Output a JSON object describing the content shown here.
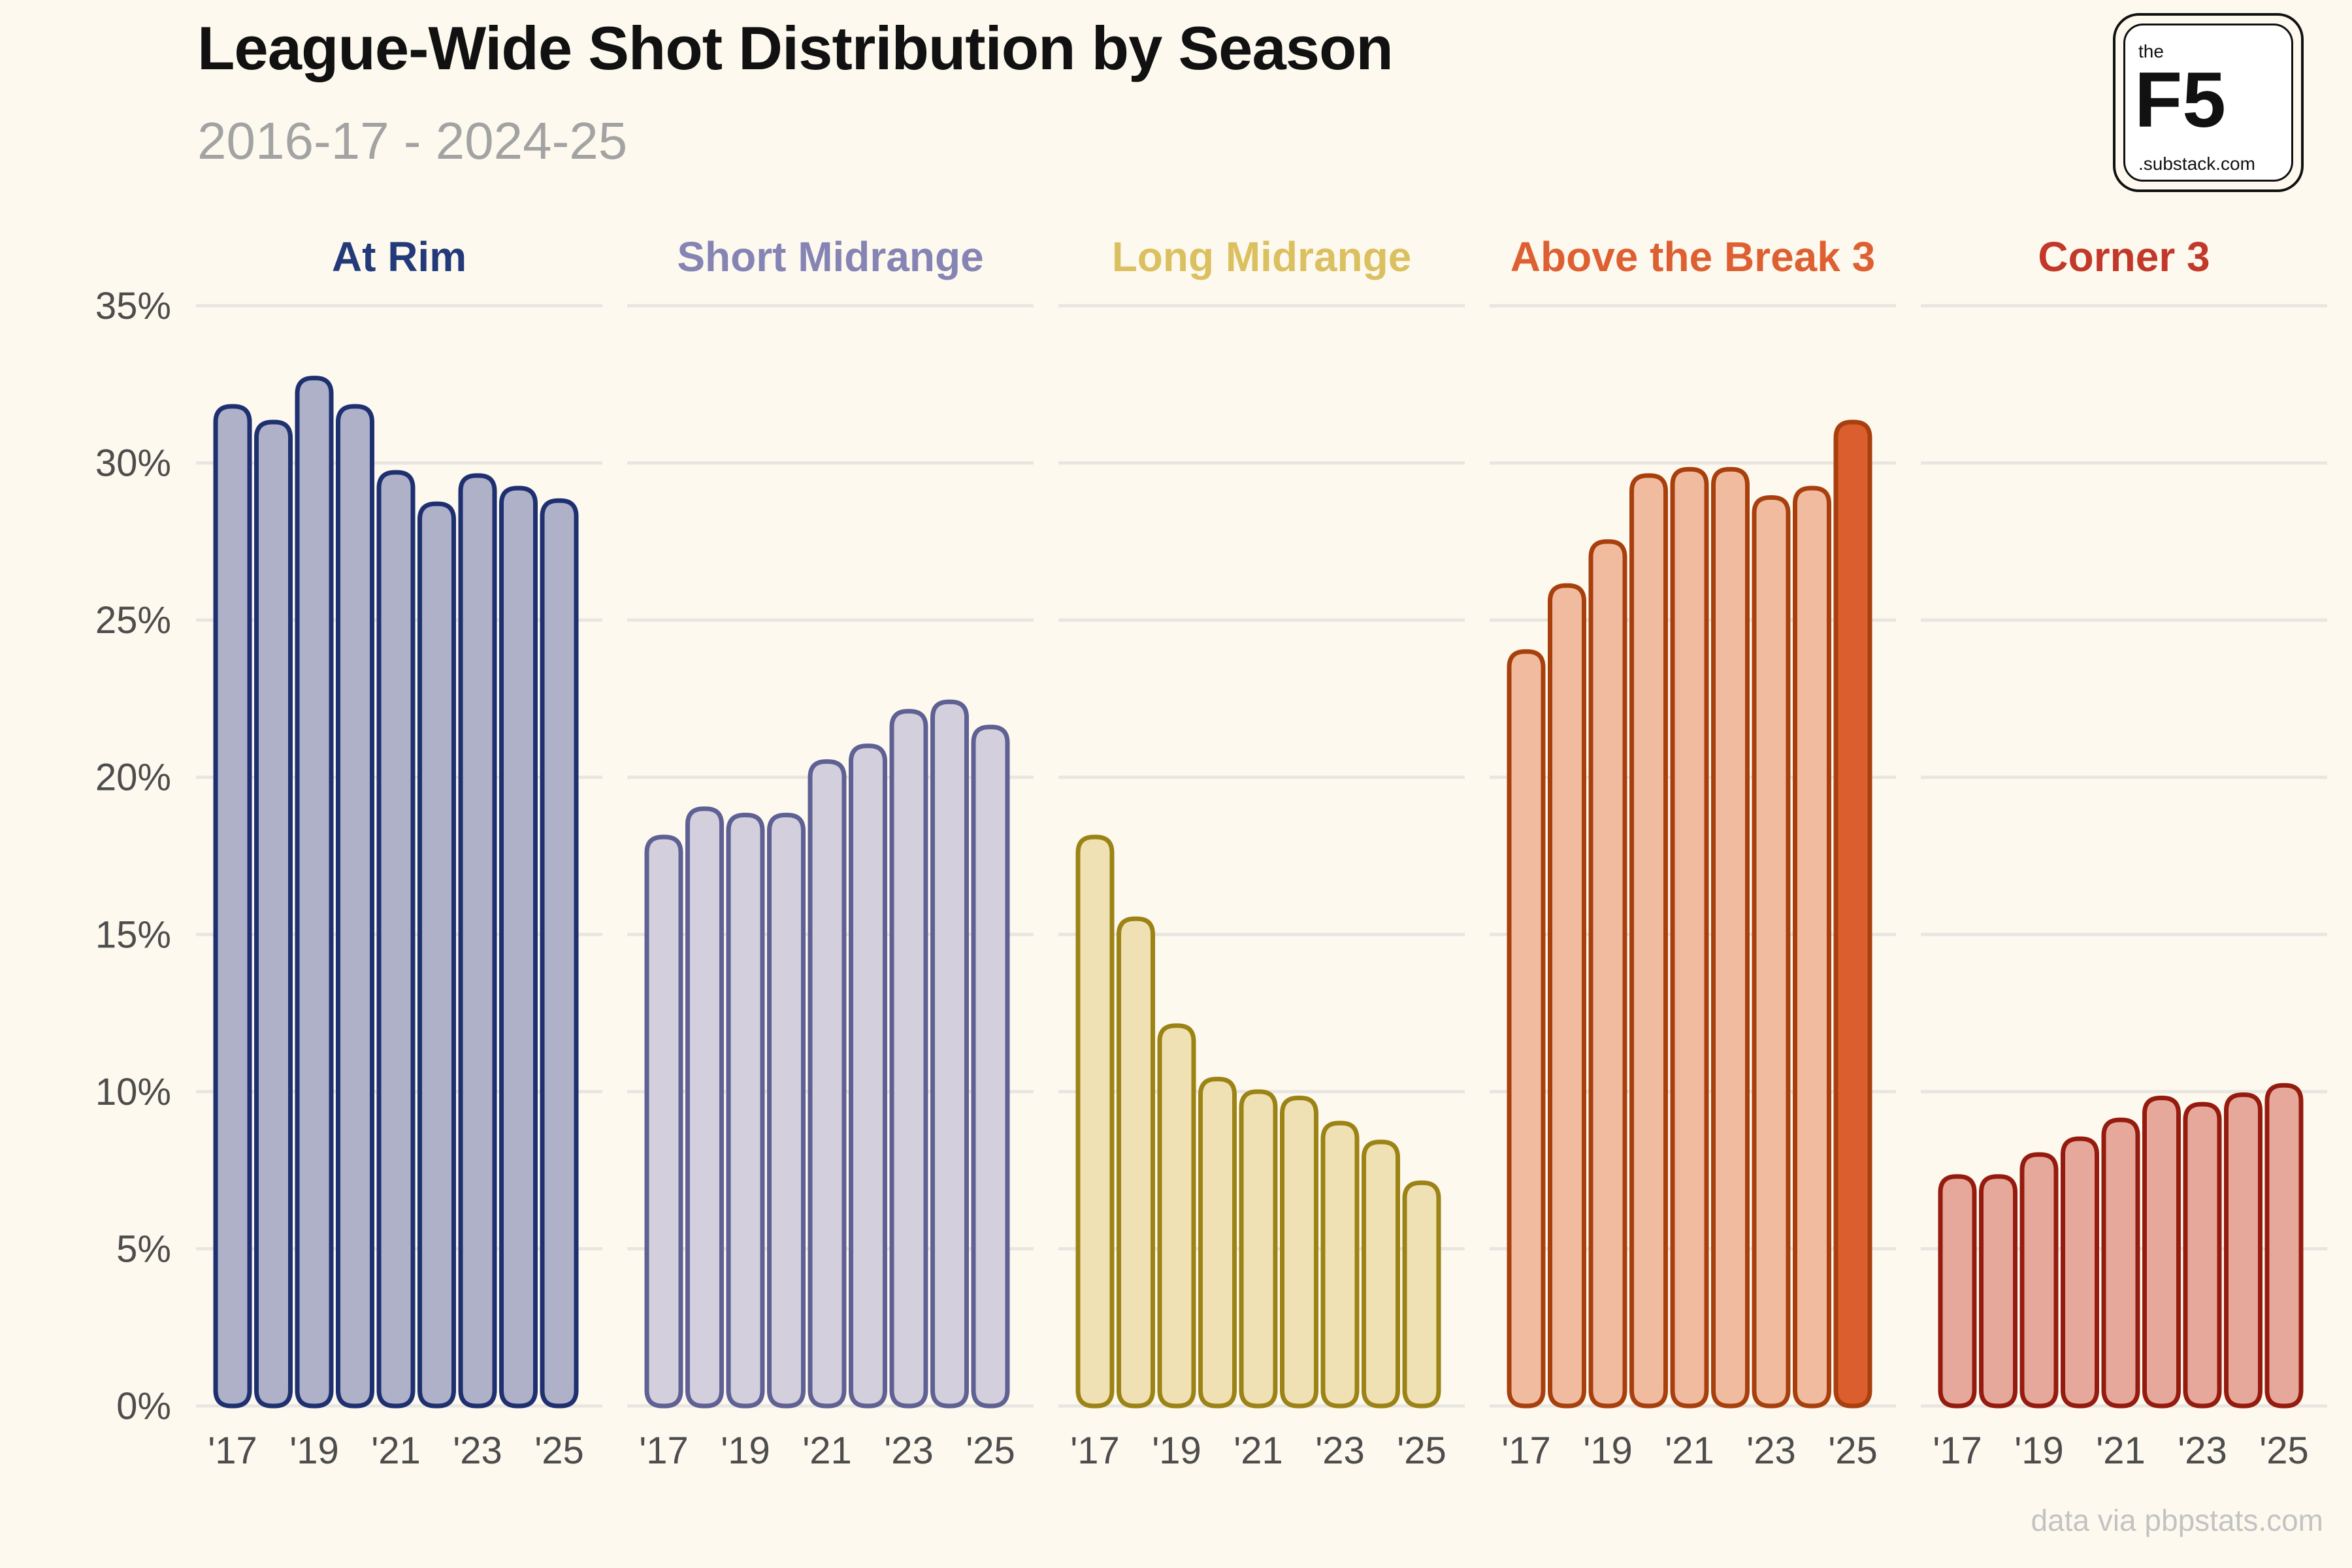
{
  "header": {
    "title": "League-Wide Shot Distribution by Season",
    "subtitle": "2016-17 - 2024-25"
  },
  "logo": {
    "the": "the",
    "main": "F5",
    "sub": ".substack.com"
  },
  "source": "data via pbpstats.com",
  "colors": {
    "background": "#fdf9ee",
    "grid": "#e9e6e2",
    "axis_text": "#4d4d4d"
  },
  "chart_data": {
    "type": "bar",
    "title": "League-Wide Shot Distribution by Season",
    "subtitle": "2016-17 - 2024-25",
    "categories": [
      "'17",
      "'18",
      "'19",
      "'20",
      "'21",
      "'22",
      "'23",
      "'24",
      "'25"
    ],
    "x_tick_labels": [
      "'17",
      "'19",
      "'21",
      "'23",
      "'25"
    ],
    "ylim": [
      0,
      35
    ],
    "y_ticks": [
      "0%",
      "5%",
      "10%",
      "15%",
      "20%",
      "25%",
      "30%",
      "35%"
    ],
    "grid": true,
    "series": [
      {
        "name": "At Rim",
        "values": [
          31.8,
          31.3,
          32.7,
          31.8,
          29.7,
          28.7,
          29.6,
          29.2,
          28.8
        ],
        "title_color": "#23397a",
        "stroke": "#1f3070",
        "fill": "#aeb1c8",
        "highlight_fill": "#aeb1c8"
      },
      {
        "name": "Short Midrange",
        "values": [
          18.1,
          19.0,
          18.8,
          18.8,
          20.5,
          21.0,
          22.1,
          22.4,
          21.6
        ],
        "title_color": "#8584b4",
        "stroke": "#5f6093",
        "fill": "#d3cfdd",
        "highlight_fill": "#d3cfdd"
      },
      {
        "name": "Long Midrange",
        "values": [
          18.1,
          15.5,
          12.1,
          10.4,
          10.0,
          9.8,
          9.0,
          8.4,
          7.1
        ],
        "title_color": "#dbc060",
        "stroke": "#9c8316",
        "fill": "#efe1b3",
        "highlight_fill": "#efe1b3"
      },
      {
        "name": "Above the Break 3",
        "values": [
          24.0,
          26.1,
          27.5,
          29.6,
          29.8,
          29.8,
          28.9,
          29.2,
          31.3
        ],
        "title_color": "#de6032",
        "stroke": "#a8400e",
        "fill": "#f1bba0",
        "highlight_fill": "#db5e2e"
      },
      {
        "name": "Corner 3",
        "values": [
          7.3,
          7.3,
          8.0,
          8.5,
          9.1,
          9.8,
          9.6,
          9.9,
          10.2
        ],
        "title_color": "#c2392b",
        "stroke": "#951b0f",
        "fill": "#e7a89c",
        "highlight_fill": "#e7a89c"
      }
    ]
  }
}
